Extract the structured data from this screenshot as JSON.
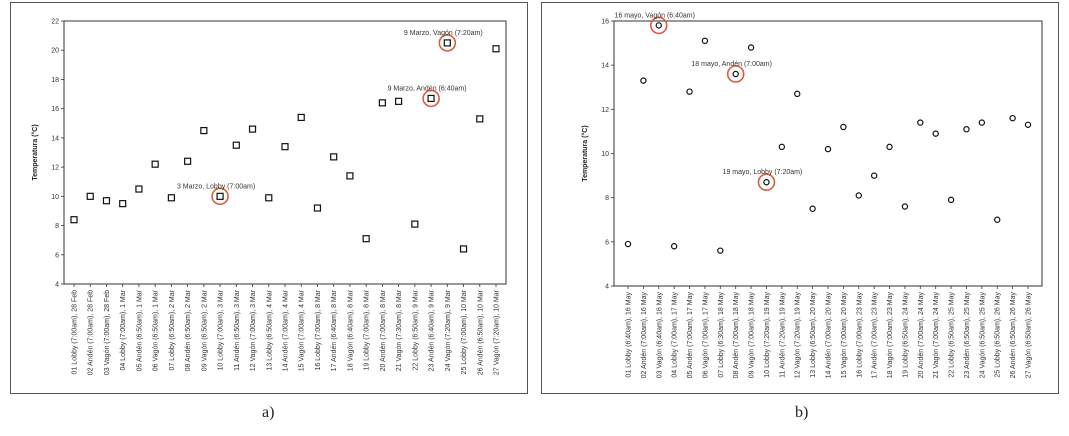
{
  "figure": {
    "caption_a": "a)",
    "caption_b": "b)"
  },
  "chart_data": [
    {
      "type": "scatter",
      "marker": "square",
      "ylabel": "Temperatura (°C)",
      "ylim": [
        4,
        22
      ],
      "yticks": [
        4,
        6,
        8,
        10,
        12,
        14,
        16,
        18,
        20,
        22
      ],
      "grid": false,
      "categories": [
        "01 Lobby (7:00am), 28 Feb",
        "02 Andén (7:00am), 28 Feb",
        "03 Vagón (7:00am), 28 Feb",
        "04 Lobby (7:00am), 1 Mar",
        "05 Andén (6:50am), 1 Mar",
        "06 Vagón (6:50am), 1 Mar",
        "07 Lobby (6:50am), 2 Mar",
        "08 Andén (6:50am), 2 Mar",
        "09 Vagón (6:50am), 2 Mar",
        "10 Lobby (7:00am), 3 Mar",
        "11 Andén (6:50am), 3 Mar",
        "12 Vagón (7:00am), 3 Mar",
        "13 Lobby (6:50am), 4 Mar",
        "14 Andén (7:00am), 4 Mar",
        "15 Vagón (7:00am), 4 Mar",
        "16 Lobby (7:00am), 8 Mar",
        "17 Andén (6:40am), 8 Mar",
        "18 Vagón (6:40am), 8 Mar",
        "19 Lobby (7:00am), 8 Mar",
        "20 Andén (7:00am), 8 Mar",
        "21 Vagón (7:30am), 8 Mar",
        "22 Lobby (6:50am), 9 Mar",
        "23 Andén (6:40am), 9 Mar",
        "24 Vagón (7:20am), 9 Mar",
        "25 Lobby (7:00am), 10 Mar",
        "26 Andén (6:50am), 10 Mar",
        "27 Vagón (7:20am), 10 Mar"
      ],
      "values": [
        8.4,
        10.0,
        9.7,
        9.5,
        10.5,
        12.2,
        9.9,
        12.4,
        14.5,
        10.0,
        13.5,
        14.6,
        9.9,
        13.4,
        15.4,
        9.2,
        12.7,
        11.4,
        7.1,
        16.4,
        16.5,
        8.1,
        16.7,
        20.5,
        6.4,
        15.3,
        20.1
      ],
      "annotations": [
        {
          "text": "3 Marzo, Lobby (7:00am)",
          "index": 9
        },
        {
          "text": "9 Marzo, Andén (6:40am)",
          "index": 22
        },
        {
          "text": "9 Marzo, Vagón (7:20am)",
          "index": 23
        }
      ]
    },
    {
      "type": "scatter",
      "marker": "circle",
      "ylabel": "Temperatura (°C)",
      "ylim": [
        4,
        16
      ],
      "yticks": [
        4,
        6,
        8,
        10,
        12,
        14,
        16
      ],
      "grid": false,
      "categories": [
        "01 Lobby (6:40am), 16 May",
        "02 Andén (7:00am), 16 May",
        "03 Vagón (6:40am), 16 May",
        "04 Lobby (7:00am), 17 May",
        "05 Andén (7:00am), 17 May",
        "06 Vagón (7:00am), 17 May",
        "07 Lobby (6:30am), 18 May",
        "08 Andén (7:00am), 18 May",
        "09 Vagón (7:00am), 18 May",
        "10 Lobby (7:20am), 19 May",
        "11 Andén (7:20am), 19 May",
        "12 Vagón (7:20am), 19 May",
        "13 Lobby (6:50am), 20 May",
        "14 Andén (7:00am), 20 May",
        "15 Vagón (7:00am), 20 May",
        "16 Lobby (7:00am), 23 May",
        "17 Andén (7:00am), 23 May",
        "18 Vagón (7:00am), 23 May",
        "19 Lobby (6:50am), 24 May",
        "20 Andén (7:00am), 24 May",
        "21 Vagón (7:00am), 24 May",
        "22 Lobby (6:50am), 25 May",
        "23 Andén (6:50am), 25 May",
        "24 Vagón (6:50am), 25 May",
        "25 Lobby (6:50am), 26 May",
        "26 Andén (6:50am), 26 May",
        "27 Vagón (6:50am), 26 May"
      ],
      "values": [
        5.9,
        13.3,
        15.8,
        5.8,
        12.8,
        15.1,
        5.6,
        13.6,
        14.8,
        8.7,
        10.3,
        12.7,
        7.5,
        10.2,
        11.2,
        8.1,
        9.0,
        10.3,
        7.6,
        11.4,
        10.9,
        7.9,
        11.1,
        11.4,
        7.0,
        11.6,
        11.3
      ],
      "annotations": [
        {
          "text": "16 mayo, Vagón (6:40am)",
          "index": 2
        },
        {
          "text": "18 mayo, Andén (7:00am)",
          "index": 7
        },
        {
          "text": "19 mayo, Lobby (7:20am)",
          "index": 9
        }
      ]
    }
  ]
}
